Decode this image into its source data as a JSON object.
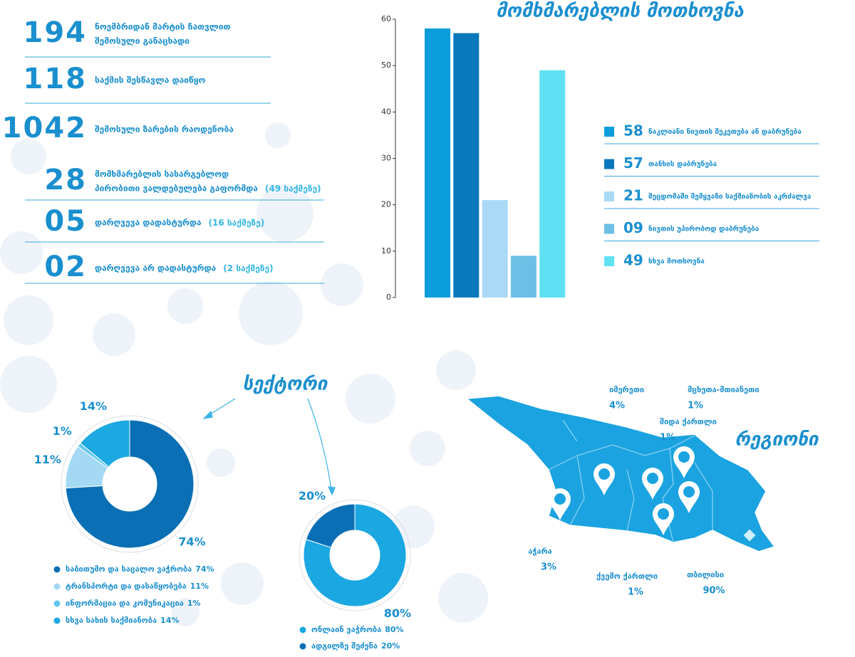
{
  "stats": [
    {
      "number": "194",
      "text": [
        "ნოემბრიდან მარტის ჩათვლით",
        "შემოსული განაცხადი"
      ]
    },
    {
      "number": "118",
      "text": [
        "საქმის შესწავლა დაიწყო"
      ]
    },
    {
      "number": "1042",
      "text": [
        "შემოსული ზარების რაოდენობა"
      ]
    },
    {
      "number": "28",
      "text": [
        "მომხმარებლის სასარგებლოდ",
        "პირობითი ვალდებულება გაფორმდა"
      ],
      "note": "(49 საქმეზე)"
    },
    {
      "number": "05",
      "text": [
        "დარღვევა დადასტურდა"
      ],
      "note": "(16 საქმეზე)"
    },
    {
      "number": "02",
      "text": [
        "დარღვევა არ დადასტურდა"
      ],
      "note": "(2 საქმეზე)"
    }
  ],
  "chart_data": [
    {
      "type": "bar",
      "title": "მომხმარებლის მოთხოვნა",
      "categories": [
        "ნაკლიანი ნივთის შეკეთება ან დაბრუნება",
        "თანხის დაბრუნება",
        "შეცდომაში შემყვანი საქმიანობის აკრძალვა",
        "ნივთის უპირობოდ დაბრუნება",
        "სხვა მოთხოვნა"
      ],
      "values": [
        58,
        57,
        21,
        9,
        49
      ],
      "value_labels": [
        "58",
        "57",
        "21",
        "09",
        "49"
      ],
      "colors": [
        "#0b9ddc",
        "#0a78bd",
        "#a9d9f5",
        "#6cc0e5",
        "#5fe1f3"
      ],
      "ylim": [
        0,
        60
      ],
      "yticks": [
        0,
        10,
        20,
        30,
        40,
        50,
        60
      ]
    },
    {
      "type": "donut",
      "title": "სექტორი",
      "categories": [
        "საბითუმო და საცალო ვაჭრობა",
        "ტრანსპორტი და დასაწყობება",
        "ინფორმაცია და კომუნიკაცია",
        "სხვა სახის საქმიანობა"
      ],
      "values": [
        74,
        11,
        1,
        14
      ],
      "value_labels": [
        "74%",
        "11%",
        "1%",
        "14%"
      ],
      "colors": [
        "#0b6fb5",
        "#a3d9f3",
        "#5fc7ee",
        "#1ca8e1"
      ]
    },
    {
      "type": "donut",
      "categories": [
        "ონლაინ ვაჭრობა",
        "ადგილზე შეძენა"
      ],
      "values": [
        80,
        20
      ],
      "value_labels": [
        "80%",
        "20%"
      ],
      "colors": [
        "#1ba7e1",
        "#0b6fb5"
      ]
    },
    {
      "type": "map",
      "title": "რეგიონი",
      "categories": [
        "იმერეთი",
        "მცხეთა-მთიანეთი",
        "შიდა ქართლი",
        "აჭარა",
        "ქვემო ქართლი",
        "თბილისი"
      ],
      "values": [
        4,
        1,
        1,
        3,
        1,
        90
      ],
      "value_labels": [
        "4%",
        "1%",
        "1%",
        "3%",
        "1%",
        "90%"
      ]
    }
  ]
}
